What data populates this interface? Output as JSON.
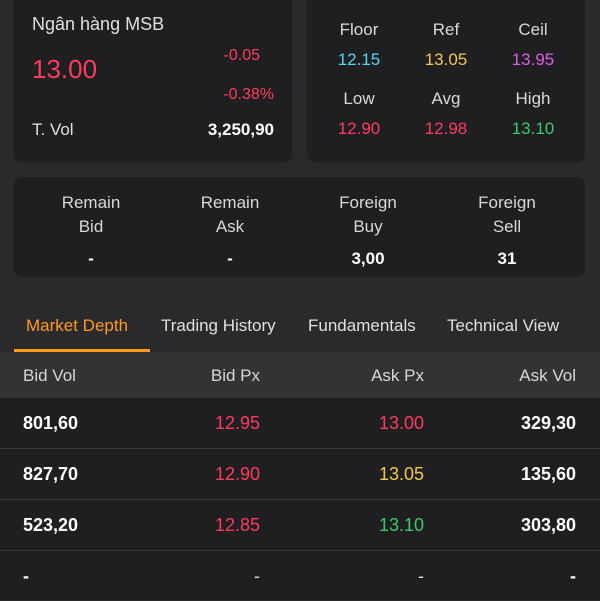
{
  "colors": {
    "down": "#ff3b5c",
    "ref": "#f2c94c",
    "up": "#3cc96a",
    "floor": "#4fd8f0",
    "ceil": "#e05ae8",
    "accent": "#ff9a1f"
  },
  "quote": {
    "name": "Ngân hàng MSB",
    "price": "13.00",
    "change": "-0.05",
    "change_pct": "-0.38%",
    "vol_label": "T. Vol",
    "vol_value": "3,250,90"
  },
  "ref_prices": [
    {
      "label": "Floor",
      "value": "12.15",
      "color": "#4fd8f0"
    },
    {
      "label": "Ref",
      "value": "13.05",
      "color": "#f2c94c"
    },
    {
      "label": "Ceil",
      "value": "13.95",
      "color": "#e05ae8"
    },
    {
      "label": "Low",
      "value": "12.90",
      "color": "#ff3b5c"
    },
    {
      "label": "Avg",
      "value": "12.98",
      "color": "#ff3b5c"
    },
    {
      "label": "High",
      "value": "13.10",
      "color": "#3cc96a"
    }
  ],
  "stats": [
    {
      "label1": "Remain",
      "label2": "Bid",
      "value": "-"
    },
    {
      "label1": "Remain",
      "label2": "Ask",
      "value": "-"
    },
    {
      "label1": "Foreign",
      "label2": "Buy",
      "value": "3,00"
    },
    {
      "label1": "Foreign",
      "label2": "Sell",
      "value": "31"
    }
  ],
  "tabs": [
    {
      "label": "Market Depth",
      "active": true
    },
    {
      "label": "Trading History",
      "active": false
    },
    {
      "label": "Fundamentals",
      "active": false
    },
    {
      "label": "Technical View",
      "active": false
    }
  ],
  "depth": {
    "headers": [
      "Bid Vol",
      "Bid Px",
      "Ask Px",
      "Ask Vol"
    ],
    "rows": [
      {
        "bid_vol": "801,60",
        "bid_px": "12.95",
        "bid_color": "#ff3b5c",
        "ask_px": "13.00",
        "ask_color": "#ff3b5c",
        "ask_vol": "329,30"
      },
      {
        "bid_vol": "827,70",
        "bid_px": "12.90",
        "bid_color": "#ff3b5c",
        "ask_px": "13.05",
        "ask_color": "#f2c94c",
        "ask_vol": "135,60"
      },
      {
        "bid_vol": "523,20",
        "bid_px": "12.85",
        "bid_color": "#ff3b5c",
        "ask_px": "13.10",
        "ask_color": "#3cc96a",
        "ask_vol": "303,80"
      },
      {
        "bid_vol": "-",
        "bid_px": "-",
        "bid_color": "#d8d8d8",
        "ask_px": "-",
        "ask_color": "#d8d8d8",
        "ask_vol": "-"
      }
    ]
  }
}
